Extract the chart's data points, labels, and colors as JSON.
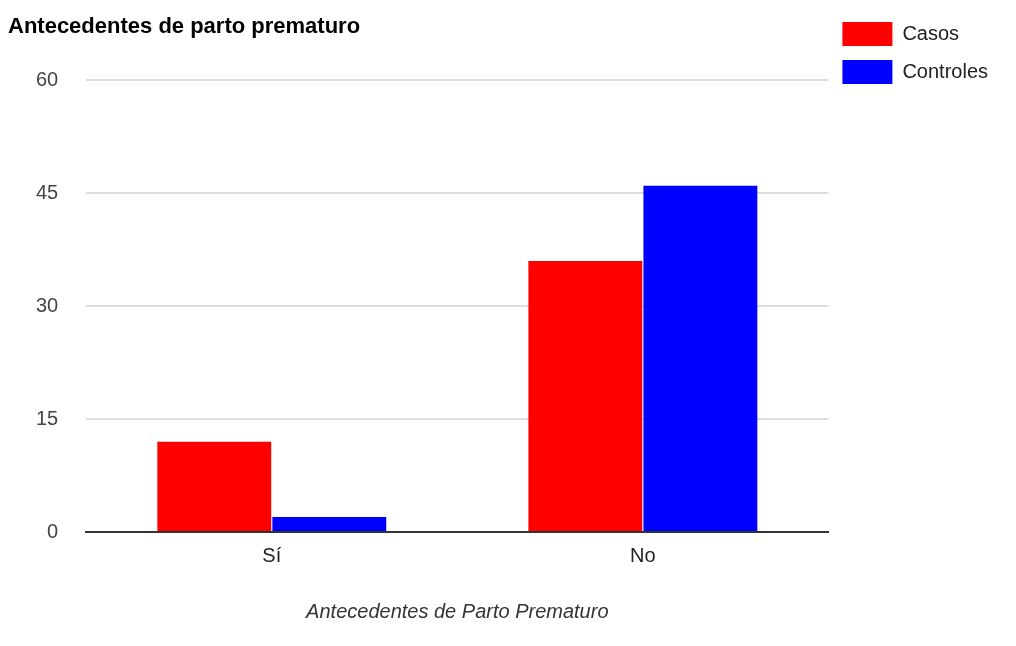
{
  "chart_data": {
    "type": "bar",
    "title": "Antecedentes de parto prematuro",
    "xlabel": "Antecedentes de Parto Prematuro",
    "categories": [
      "Sí",
      "No"
    ],
    "series": [
      {
        "name": "Casos",
        "color": "#ff0000",
        "values": [
          12,
          36
        ]
      },
      {
        "name": "Controles",
        "color": "#0000ff",
        "values": [
          2,
          46
        ]
      }
    ],
    "ylim": [
      0,
      60
    ],
    "yticks": [
      0,
      15,
      30,
      45,
      60
    ],
    "grid": "y",
    "legend": "top right"
  }
}
